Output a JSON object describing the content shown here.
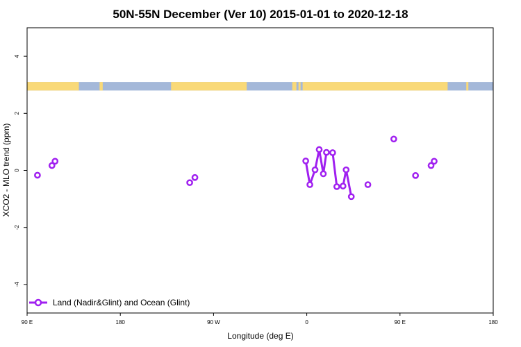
{
  "chart_data": {
    "type": "line",
    "title": "50N-55N December (Ver 10)   2015-01-01 to 2020-12-18",
    "xlabel": "Longitude (deg E)",
    "ylabel": "XCO2 - MLO trend (ppm)",
    "xlim": [
      90,
      540
    ],
    "ylim": [
      -5,
      5
    ],
    "x_ticks": [
      {
        "value": 90,
        "label": "90 E"
      },
      {
        "value": 180,
        "label": "180"
      },
      {
        "value": 270,
        "label": "90 W"
      },
      {
        "value": 360,
        "label": "0"
      },
      {
        "value": 450,
        "label": "90 E"
      },
      {
        "value": 540,
        "label": "180"
      }
    ],
    "y_ticks": [
      {
        "value": -4,
        "label": "-4"
      },
      {
        "value": -2,
        "label": "-2"
      },
      {
        "value": 0,
        "label": "0"
      },
      {
        "value": 2,
        "label": "2"
      },
      {
        "value": 4,
        "label": "4"
      }
    ],
    "series": [
      {
        "name": "Land (Nadir&Glint) and Ocean (Glint)",
        "color": "#a020f0",
        "points": [
          {
            "x": 100,
            "y": -0.17
          },
          {
            "x": 114,
            "y": 0.17
          },
          {
            "x": 117,
            "y": 0.32
          },
          {
            "x": 247,
            "y": -0.43
          },
          {
            "x": 252,
            "y": -0.25
          },
          {
            "x": 359,
            "y": 0.33
          },
          {
            "x": 363,
            "y": -0.5
          },
          {
            "x": 368,
            "y": 0.02
          },
          {
            "x": 372,
            "y": 0.73
          },
          {
            "x": 376,
            "y": -0.12
          },
          {
            "x": 379,
            "y": 0.63
          },
          {
            "x": 385,
            "y": 0.62
          },
          {
            "x": 389,
            "y": -0.57
          },
          {
            "x": 395,
            "y": -0.55
          },
          {
            "x": 398,
            "y": 0.02
          },
          {
            "x": 403,
            "y": -0.92
          },
          {
            "x": 419,
            "y": -0.5
          },
          {
            "x": 444,
            "y": 1.1
          },
          {
            "x": 465,
            "y": -0.18
          },
          {
            "x": 480,
            "y": 0.17
          },
          {
            "x": 483,
            "y": 0.32
          }
        ],
        "connected_groups": [
          [
            5,
            15
          ]
        ]
      }
    ],
    "legend": {
      "position": "bottom-left"
    },
    "land_mask_band": {
      "y_range": [
        2.8,
        3.1
      ],
      "land_color": "#f9d978",
      "ocean_color": "#a4b8d9",
      "land_intervals": [
        [
          90,
          140
        ],
        [
          160,
          163
        ],
        [
          229,
          302
        ],
        [
          346,
          350
        ],
        [
          352,
          354
        ],
        [
          356,
          496
        ],
        [
          514,
          516
        ]
      ]
    }
  }
}
